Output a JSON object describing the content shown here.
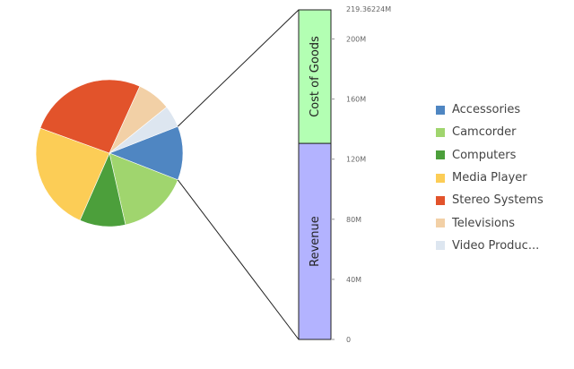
{
  "chart_data": {
    "type": "bar-of-pie",
    "pie": {
      "slices": [
        {
          "name": "Accessories",
          "value": 12,
          "color": "#4f86c2"
        },
        {
          "name": "Camcorder",
          "value": 15.7,
          "color": "#a0d56e"
        },
        {
          "name": "Computers",
          "value": 10.2,
          "color": "#4c9f3b"
        },
        {
          "name": "Media Player",
          "value": 24.2,
          "color": "#fccd56"
        },
        {
          "name": "Stereo Systems",
          "value": 26.5,
          "color": "#e2532b"
        },
        {
          "name": "Televisions",
          "value": 7.5,
          "color": "#f2d0a6"
        },
        {
          "name": "Video Produc...",
          "value": 4.9,
          "color": "#dde6f0"
        }
      ]
    },
    "bar": {
      "segments": [
        {
          "name": "Revenue",
          "value": 130.5,
          "color": "#b3b3ff"
        },
        {
          "name": "Cost of Goods",
          "value": 88.86224,
          "color": "#b3ffb3"
        }
      ],
      "total_label": "219.36224M",
      "ylim": [
        0,
        219.36224
      ],
      "ticks": [
        {
          "value": 0,
          "label": "0"
        },
        {
          "value": 40,
          "label": "40M"
        },
        {
          "value": 80,
          "label": "80M"
        },
        {
          "value": 120,
          "label": "120M"
        },
        {
          "value": 160,
          "label": "160M"
        },
        {
          "value": 200,
          "label": "200M"
        }
      ]
    }
  }
}
